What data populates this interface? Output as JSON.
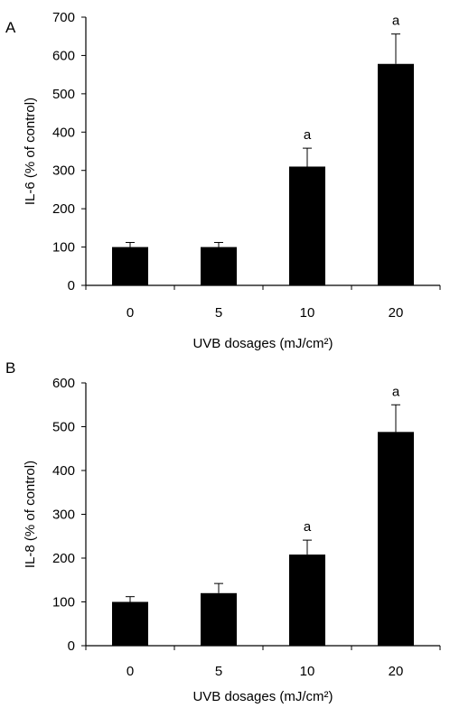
{
  "chart_data": [
    {
      "type": "bar",
      "panel_label": "A",
      "categories": [
        "0",
        "5",
        "10",
        "20"
      ],
      "series": [
        {
          "values": [
            100,
            100,
            310,
            578
          ],
          "error": [
            12,
            12,
            48,
            78
          ],
          "annotations": [
            "",
            "",
            "a",
            "a"
          ]
        }
      ],
      "xlabel": "UVB dosages (mJ/cm²)",
      "ylabel": "IL-6 (% of control)",
      "ylim": [
        0,
        700
      ],
      "yticks": [
        0,
        100,
        200,
        300,
        400,
        500,
        600,
        700
      ],
      "grid": false,
      "bar_color": "#000000"
    },
    {
      "type": "bar",
      "panel_label": "B",
      "categories": [
        "0",
        "5",
        "10",
        "20"
      ],
      "series": [
        {
          "values": [
            100,
            120,
            208,
            488
          ],
          "error": [
            12,
            22,
            33,
            62
          ],
          "annotations": [
            "",
            "",
            "a",
            "a"
          ]
        }
      ],
      "xlabel": "UVB dosages (mJ/cm²)",
      "ylabel": "IL-8 (% of control)",
      "ylim": [
        0,
        600
      ],
      "yticks": [
        0,
        100,
        200,
        300,
        400,
        500,
        600
      ],
      "grid": false,
      "bar_color": "#000000"
    }
  ]
}
